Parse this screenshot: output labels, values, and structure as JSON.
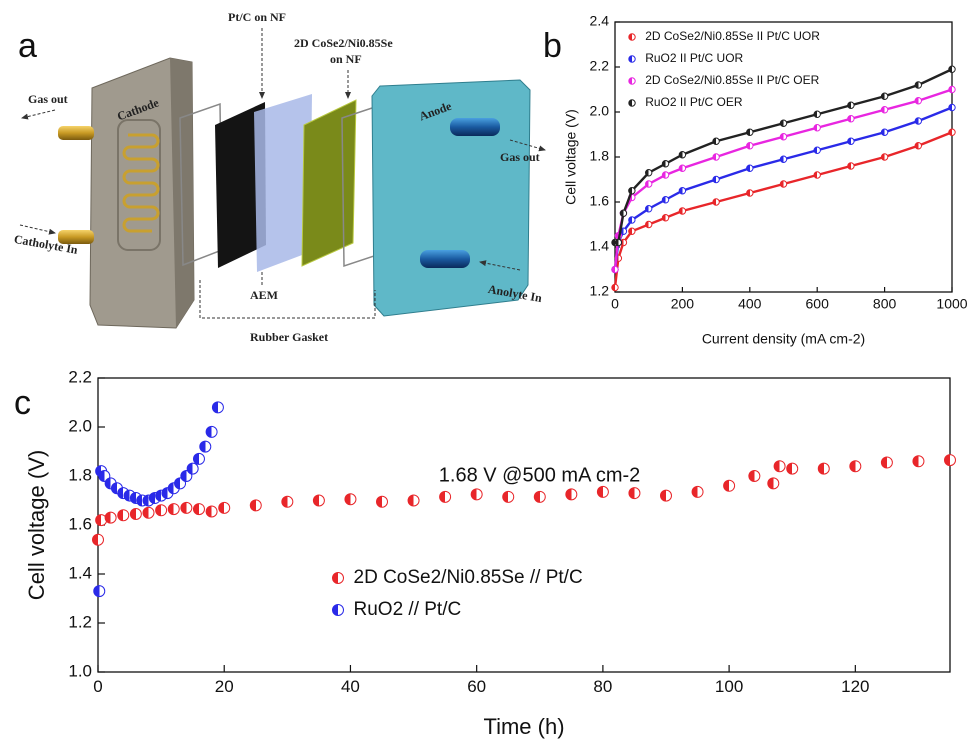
{
  "panel_labels": [
    "a",
    "b",
    "c"
  ],
  "diagram": {
    "gas_out_left": "Gas out",
    "catholyte_in": "Catholyte In",
    "cathode": "Cathode",
    "pt_c": "Pt/C on NF",
    "cose2_line1": "2D CoSe2/Ni0.85Se",
    "cose2_line2": "on NF",
    "aem": "AEM",
    "rubber_gasket": "Rubber Gasket",
    "anode": "Anode",
    "gas_out_right": "Gas out",
    "anolyte_in": "Anolyte In"
  },
  "chart_data": [
    {
      "type": "line",
      "xlabel": "Current density (mA cm-2)",
      "ylabel": "Cell voltage (V)",
      "x": [
        0,
        10,
        25,
        50,
        100,
        150,
        200,
        300,
        400,
        500,
        600,
        700,
        800,
        900,
        1000
      ],
      "series": [
        {
          "name": "2D CoSe2/Ni0.85Se II Pt/C UOR",
          "color": "#e8262a",
          "values": [
            1.22,
            1.35,
            1.42,
            1.47,
            1.5,
            1.53,
            1.56,
            1.6,
            1.64,
            1.68,
            1.72,
            1.76,
            1.8,
            1.85,
            1.91
          ]
        },
        {
          "name": "RuO2 II Pt/C UOR",
          "color": "#2a2ae8",
          "values": [
            1.3,
            1.42,
            1.47,
            1.52,
            1.57,
            1.61,
            1.65,
            1.7,
            1.75,
            1.79,
            1.83,
            1.87,
            1.91,
            1.96,
            2.02
          ]
        },
        {
          "name": "2D CoSe2/Ni0.85Se II Pt/C OER",
          "color": "#e826e0",
          "values": [
            1.3,
            1.45,
            1.55,
            1.62,
            1.68,
            1.72,
            1.75,
            1.8,
            1.85,
            1.89,
            1.93,
            1.97,
            2.01,
            2.05,
            2.1
          ]
        },
        {
          "name": "RuO2 II Pt/C OER",
          "color": "#222222",
          "values": [
            1.42,
            1.42,
            1.55,
            1.65,
            1.73,
            1.77,
            1.81,
            1.87,
            1.91,
            1.95,
            1.99,
            2.03,
            2.07,
            2.12,
            2.19
          ]
        }
      ],
      "xlim": [
        0,
        1000
      ],
      "xticks": [
        0,
        200,
        400,
        600,
        800,
        1000
      ],
      "ylim": [
        1.2,
        2.4
      ],
      "yticks": [
        1.2,
        1.4,
        1.6,
        1.8,
        {
          "value": 2,
          "label": "2.0"
        },
        2.2,
        2.4
      ],
      "legend": "upper left"
    },
    {
      "type": "scatter",
      "xlabel": "Time (h)",
      "ylabel": "Cell voltage (V)",
      "annotation": "1.68 V @500 mA cm-2",
      "series": [
        {
          "name": "2D CoSe2/Ni0.85Se // Pt/C",
          "color": "#e8262a",
          "x": [
            0,
            0.5,
            2,
            4,
            6,
            8,
            10,
            12,
            14,
            16,
            18,
            20,
            25,
            30,
            35,
            40,
            45,
            50,
            55,
            60,
            65,
            70,
            75,
            80,
            85,
            90,
            95,
            100,
            104,
            107,
            108,
            110,
            115,
            120,
            125,
            130,
            135
          ],
          "values": [
            1.54,
            1.62,
            1.63,
            1.64,
            1.645,
            1.65,
            1.66,
            1.665,
            1.67,
            1.665,
            1.655,
            1.67,
            1.68,
            1.695,
            1.7,
            1.705,
            1.695,
            1.7,
            1.715,
            1.725,
            1.715,
            1.715,
            1.725,
            1.735,
            1.73,
            1.72,
            1.735,
            1.76,
            1.8,
            1.77,
            1.84,
            1.83,
            1.83,
            1.84,
            1.855,
            1.86,
            1.865
          ]
        },
        {
          "name": "RuO2 // Pt/C",
          "color": "#2a2ae8",
          "x": [
            0.2,
            0.5,
            1,
            2,
            3,
            4,
            5,
            6,
            7,
            8,
            9,
            10,
            11,
            12,
            13,
            14,
            15,
            16,
            17,
            18,
            19
          ],
          "values": [
            1.33,
            1.82,
            1.8,
            1.77,
            1.75,
            1.73,
            1.72,
            1.71,
            1.7,
            1.7,
            1.71,
            1.72,
            1.73,
            1.75,
            1.77,
            1.8,
            1.83,
            1.87,
            1.92,
            1.98,
            2.08
          ]
        }
      ],
      "xlim": [
        0,
        135
      ],
      "xticks": [
        0,
        20,
        40,
        60,
        80,
        100,
        120
      ],
      "ylim": [
        1,
        2.2
      ],
      "yticks": [
        {
          "value": 1,
          "label": "1.0"
        },
        1.2,
        1.4,
        1.6,
        1.8,
        {
          "value": 2,
          "label": "2.0"
        },
        2.2
      ],
      "legend": "center left"
    }
  ]
}
